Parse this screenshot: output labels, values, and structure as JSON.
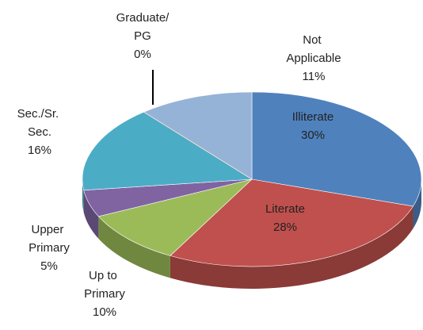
{
  "chart_data": {
    "type": "pie3d",
    "categories": [
      "Illiterate",
      "Literate",
      "Up to Primary",
      "Upper Primary",
      "Sec./Sr. Sec.",
      "Graduate/PG",
      "Not Applicable"
    ],
    "values": [
      30,
      28,
      10,
      5,
      16,
      0,
      11
    ],
    "value_labels": [
      "30%",
      "28%",
      "10%",
      "5%",
      "16%",
      "0%",
      "11%"
    ],
    "colors": [
      "#4f81bd",
      "#c0504d",
      "#9bbb59",
      "#8064a2",
      "#4bacc6",
      "#f79646",
      "#95b3d7"
    ]
  }
}
